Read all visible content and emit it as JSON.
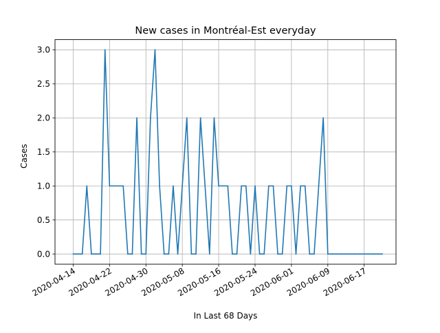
{
  "chart_data": {
    "type": "line",
    "title": "New cases in Montréal-Est everyday",
    "xlabel": "In Last 68 Days",
    "ylabel": "Cases",
    "ylim": [
      -0.15,
      3.15
    ],
    "xlim": [
      "2020-04-10",
      "2020-06-24"
    ],
    "grid": true,
    "line_color": "#1f77b4",
    "x_ticks": [
      "2020-04-14",
      "2020-04-22",
      "2020-04-30",
      "2020-05-08",
      "2020-05-16",
      "2020-05-24",
      "2020-06-01",
      "2020-06-09",
      "2020-06-17"
    ],
    "y_ticks": [
      "0.0",
      "0.5",
      "1.0",
      "1.5",
      "2.0",
      "2.5",
      "3.0"
    ],
    "series": [
      {
        "x": [
          "2020-04-14",
          "2020-04-15",
          "2020-04-16",
          "2020-04-17",
          "2020-04-18",
          "2020-04-19",
          "2020-04-20",
          "2020-04-21",
          "2020-04-22",
          "2020-04-23",
          "2020-04-24",
          "2020-04-25",
          "2020-04-26",
          "2020-04-27",
          "2020-04-28",
          "2020-04-29",
          "2020-04-30",
          "2020-05-01",
          "2020-05-02",
          "2020-05-03",
          "2020-05-04",
          "2020-05-05",
          "2020-05-06",
          "2020-05-07",
          "2020-05-08",
          "2020-05-09",
          "2020-05-10",
          "2020-05-11",
          "2020-05-12",
          "2020-05-13",
          "2020-05-14",
          "2020-05-15",
          "2020-05-16",
          "2020-05-17",
          "2020-05-18",
          "2020-05-19",
          "2020-05-20",
          "2020-05-21",
          "2020-05-22",
          "2020-05-23",
          "2020-05-24",
          "2020-05-25",
          "2020-05-26",
          "2020-05-27",
          "2020-05-28",
          "2020-05-29",
          "2020-05-30",
          "2020-05-31",
          "2020-06-01",
          "2020-06-02",
          "2020-06-03",
          "2020-06-04",
          "2020-06-05",
          "2020-06-06",
          "2020-06-07",
          "2020-06-08",
          "2020-06-09",
          "2020-06-10",
          "2020-06-11",
          "2020-06-12",
          "2020-06-13",
          "2020-06-14",
          "2020-06-15",
          "2020-06-16",
          "2020-06-17",
          "2020-06-18",
          "2020-06-19",
          "2020-06-20",
          "2020-06-21"
        ],
        "values": [
          0,
          0,
          0,
          1,
          0,
          0,
          0,
          3,
          1,
          1,
          1,
          1,
          0,
          0,
          2,
          0,
          0,
          2,
          3,
          1,
          0,
          0,
          1,
          0,
          1,
          2,
          0,
          0,
          2,
          1,
          0,
          2,
          1,
          1,
          1,
          0,
          0,
          1,
          1,
          0,
          1,
          0,
          0,
          1,
          1,
          0,
          0,
          1,
          1,
          0,
          1,
          1,
          0,
          0,
          1,
          2,
          0,
          0,
          0,
          0,
          0,
          0,
          0,
          0,
          0,
          0,
          0,
          0,
          0
        ]
      }
    ]
  }
}
